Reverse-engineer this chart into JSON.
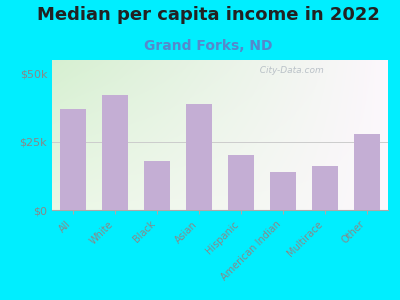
{
  "title": "Median per capita income in 2022",
  "subtitle": "Grand Forks, ND",
  "categories": [
    "All",
    "White",
    "Black",
    "Asian",
    "Hispanic",
    "American Indian",
    "Multirace",
    "Other"
  ],
  "values": [
    37000,
    42000,
    18000,
    39000,
    20000,
    14000,
    16000,
    28000
  ],
  "bar_color": "#c4aed4",
  "background_outer": "#00eeff",
  "title_fontsize": 13,
  "subtitle_fontsize": 10,
  "subtitle_color": "#5588cc",
  "tick_label_color": "#888888",
  "ytick_labels": [
    "$0",
    "$25k",
    "$50k"
  ],
  "ytick_values": [
    0,
    25000,
    50000
  ],
  "ylim": [
    0,
    55000
  ],
  "watermark": "  City-Data.com"
}
